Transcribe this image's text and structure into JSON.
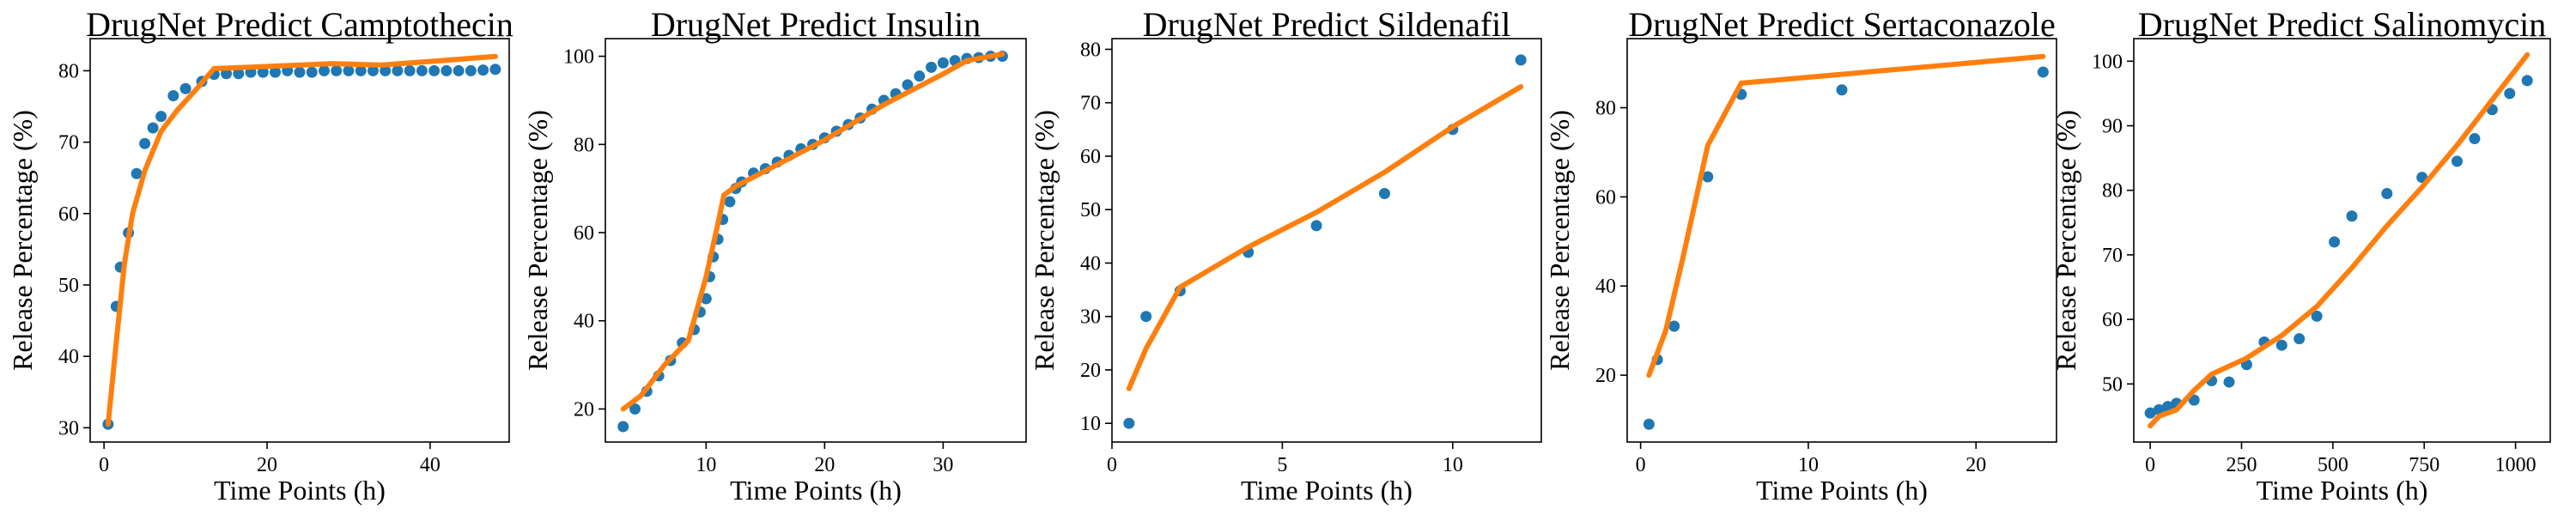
{
  "colors": {
    "observed": "#1f77b4",
    "predicted": "#ff7f0e"
  },
  "chart_data": [
    {
      "type": "line",
      "title": "DrugNet Predict Camptothecin",
      "xlabel": "Time Points (h)",
      "ylabel": "Release Percentage (%)",
      "xlim": [
        -1.7,
        49.7
      ],
      "ylim": [
        28,
        84.5
      ],
      "xticks": [
        0,
        20,
        40
      ],
      "yticks": [
        30,
        40,
        50,
        60,
        70,
        80
      ],
      "series": [
        {
          "kind": "scatter",
          "x": [
            0.5,
            1.5,
            2.0,
            3.0,
            4.0,
            5.0,
            6.0,
            7.0,
            8.5,
            10.0,
            12.0,
            13.5,
            15.0,
            16.5,
            18.0,
            19.5,
            21.0,
            22.5,
            24.0,
            25.5,
            27.0,
            28.5,
            30.0,
            31.5,
            33.0,
            34.5,
            36.0,
            37.5,
            39.0,
            40.5,
            42.0,
            43.5,
            45.0,
            46.5,
            48.0
          ],
          "y": [
            30.5,
            47.0,
            52.5,
            57.3,
            65.6,
            69.8,
            72.0,
            73.6,
            76.5,
            77.5,
            78.5,
            79.5,
            79.6,
            79.6,
            79.8,
            79.8,
            79.8,
            80.0,
            79.8,
            79.8,
            80.0,
            80.0,
            80.0,
            80.0,
            80.0,
            80.0,
            80.0,
            80.0,
            80.0,
            80.0,
            80.0,
            80.0,
            80.0,
            80.1,
            80.2
          ]
        },
        {
          "kind": "line",
          "x": [
            0.5,
            1.5,
            2.5,
            3.5,
            5.0,
            7.0,
            9.0,
            11.0,
            13.5,
            20.0,
            28.0,
            34.0,
            40.0,
            48.0
          ],
          "y": [
            30.5,
            42.0,
            53.0,
            60.0,
            66.0,
            71.5,
            74.5,
            77.0,
            80.3,
            80.6,
            81.0,
            80.8,
            81.3,
            82.0
          ]
        }
      ]
    },
    {
      "type": "line",
      "title": "DrugNet Predict Insulin",
      "xlabel": "Time Points (h)",
      "ylabel": "Release Percentage (%)",
      "xlim": [
        1.5,
        37.0
      ],
      "ylim": [
        12.5,
        104
      ],
      "xticks": [
        10,
        20,
        30
      ],
      "yticks": [
        20,
        40,
        60,
        80,
        100
      ],
      "series": [
        {
          "kind": "scatter",
          "x": [
            3.0,
            4.0,
            5.0,
            6.0,
            7.0,
            8.0,
            9.0,
            9.5,
            10.0,
            10.3,
            10.6,
            11.0,
            11.4,
            12.0,
            12.5,
            13.0,
            14.0,
            15.0,
            16.0,
            17.0,
            18.0,
            19.0,
            20.0,
            21.0,
            22.0,
            23.0,
            24.0,
            25.0,
            26.0,
            27.0,
            28.0,
            29.0,
            30.0,
            31.0,
            32.0,
            33.0,
            34.0,
            35.0
          ],
          "y": [
            16.0,
            20.0,
            24.0,
            27.5,
            31.0,
            35.0,
            38.0,
            42.0,
            45.0,
            50.0,
            54.5,
            58.5,
            63.0,
            67.0,
            70.0,
            71.5,
            73.5,
            74.5,
            76.0,
            77.5,
            79.0,
            80.0,
            81.5,
            83.0,
            84.5,
            86.0,
            88.0,
            90.0,
            91.5,
            93.5,
            95.5,
            97.5,
            98.5,
            99.0,
            99.5,
            99.7,
            100.0,
            100.0
          ]
        },
        {
          "kind": "line",
          "x": [
            3.0,
            4.5,
            6.5,
            8.5,
            10.0,
            11.0,
            11.5,
            12.5,
            15.0,
            20.0,
            25.0,
            30.0,
            32.0,
            35.0
          ],
          "y": [
            20.0,
            23.0,
            30.0,
            35.5,
            50.0,
            62.0,
            68.5,
            70.5,
            74.0,
            81.0,
            89.0,
            96.0,
            99.0,
            100.5
          ]
        }
      ]
    },
    {
      "type": "line",
      "title": "DrugNet Predict Sildenafil",
      "xlabel": "Time Points (h)",
      "ylabel": "Release Percentage (%)",
      "xlim": [
        0,
        12.6
      ],
      "ylim": [
        6.5,
        82
      ],
      "xticks": [
        0,
        5,
        10
      ],
      "yticks": [
        10,
        20,
        30,
        40,
        50,
        60,
        70,
        80
      ],
      "series": [
        {
          "kind": "scatter",
          "x": [
            0.5,
            1.0,
            2.0,
            4.0,
            6.0,
            8.0,
            10.0,
            12.0
          ],
          "y": [
            10.0,
            30.0,
            34.8,
            42.0,
            47.0,
            53.0,
            65.0,
            78.0
          ]
        },
        {
          "kind": "line",
          "x": [
            0.5,
            1.0,
            2.0,
            4.0,
            6.0,
            8.0,
            10.0,
            12.0
          ],
          "y": [
            16.5,
            24.0,
            35.5,
            43.0,
            49.5,
            57.0,
            65.5,
            73.0
          ]
        }
      ]
    },
    {
      "type": "line",
      "title": "DrugNet Predict Sertaconazole",
      "xlabel": "Time Points (h)",
      "ylabel": "Release Percentage (%)",
      "xlim": [
        -0.8,
        24.8
      ],
      "ylim": [
        5,
        95.5
      ],
      "xticks": [
        0,
        10,
        20
      ],
      "yticks": [
        20,
        40,
        60,
        80
      ],
      "series": [
        {
          "kind": "scatter",
          "x": [
            0.5,
            1.0,
            2.0,
            4.0,
            6.0,
            12.0,
            24.0
          ],
          "y": [
            9.0,
            23.5,
            31.0,
            64.5,
            83.0,
            84.0,
            88.0
          ]
        },
        {
          "kind": "line",
          "x": [
            0.5,
            1.5,
            2.5,
            4.0,
            6.0,
            24.0
          ],
          "y": [
            20.0,
            30.0,
            46.0,
            71.5,
            85.5,
            91.5
          ]
        }
      ]
    },
    {
      "type": "line",
      "title": "DrugNet Predict Salinomycin",
      "xlabel": "Time Points (h)",
      "ylabel": "Release Percentage (%)",
      "xlim": [
        -45,
        1095
      ],
      "ylim": [
        41,
        103.5
      ],
      "xticks": [
        0,
        250,
        500,
        750,
        1000
      ],
      "yticks": [
        50,
        60,
        70,
        80,
        90,
        100
      ],
      "series": [
        {
          "kind": "scatter",
          "x": [
            0,
            24,
            48,
            72,
            120,
            168,
            216,
            264,
            312,
            360,
            408,
            456,
            504,
            552,
            648,
            744,
            840,
            888,
            936,
            984,
            1032
          ],
          "y": [
            45.5,
            46.0,
            46.5,
            47.0,
            47.5,
            50.5,
            50.3,
            53.0,
            56.5,
            56.0,
            57.0,
            60.5,
            72.0,
            76.0,
            79.5,
            82.0,
            84.5,
            88.0,
            92.5,
            95.0,
            97.0
          ]
        },
        {
          "kind": "line",
          "x": [
            0,
            24,
            72,
            120,
            168,
            264,
            360,
            456,
            552,
            648,
            744,
            840,
            936,
            1032
          ],
          "y": [
            43.5,
            45.0,
            46.0,
            49.0,
            51.5,
            54.0,
            57.5,
            62.0,
            68.0,
            74.5,
            80.5,
            87.0,
            94.0,
            101.0
          ]
        }
      ]
    }
  ]
}
